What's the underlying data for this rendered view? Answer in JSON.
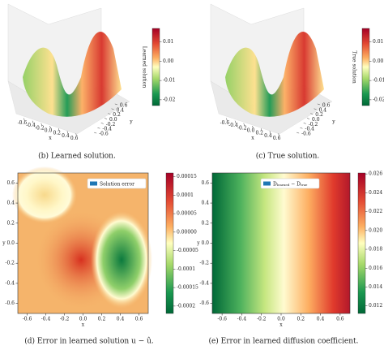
{
  "panels": [
    {
      "caption": "(b) Learned solution.",
      "xlabel": "x",
      "ylabel": "y",
      "xticks": [
        -0.6,
        -0.4,
        -0.2,
        {
          "value": 0,
          "label": "0.0"
        },
        0.2,
        0.4,
        0.6
      ],
      "yticks": [
        -0.6,
        -0.4,
        -0.2,
        {
          "value": 0,
          "label": "0.0"
        },
        0.2,
        0.4,
        0.6
      ],
      "xlim": [
        -0.7,
        0.7
      ],
      "ylim": [
        -0.7,
        0.7
      ],
      "colorbar": {
        "label": "Learned solution",
        "lim": [
          -0.023,
          0.017
        ],
        "ticks": [
          0.01,
          {
            "value": 0,
            "label": "0.00"
          },
          -0.01,
          -0.02
        ]
      }
    },
    {
      "caption": "(c) True solution.",
      "xlabel": "x",
      "ylabel": "y",
      "xticks": [
        -0.6,
        -0.4,
        -0.2,
        {
          "value": 0,
          "label": "0.0"
        },
        0.2,
        0.4,
        0.6
      ],
      "yticks": [
        -0.6,
        -0.4,
        -0.2,
        {
          "value": 0,
          "label": "0.0"
        },
        0.2,
        0.4,
        0.6
      ],
      "xlim": [
        -0.7,
        0.7
      ],
      "ylim": [
        -0.7,
        0.7
      ],
      "colorbar": {
        "label": "True solution",
        "lim": [
          -0.023,
          0.017
        ],
        "ticks": [
          0.01,
          {
            "value": 0,
            "label": "0.00"
          },
          -0.01,
          -0.02
        ]
      }
    },
    {
      "caption": "(d) Error in learned solution u − û.",
      "xlabel": "x",
      "ylabel": "y",
      "xticks": [
        -0.6,
        -0.4,
        -0.2,
        {
          "value": 0,
          "label": "0.0"
        },
        0.2,
        0.4,
        0.6
      ],
      "yticks": [
        0.6,
        0.4,
        0.2,
        {
          "value": 0,
          "label": "0.0"
        },
        -0.2,
        -0.4,
        -0.6
      ],
      "xlim": [
        -0.7,
        0.7
      ],
      "ylim": [
        -0.7,
        0.7
      ],
      "legend": [
        "Solution error"
      ],
      "colorbar": {
        "lim": [
          -0.00022,
          0.00016
        ],
        "ticks": [
          0.00015,
          0.0001,
          5e-05,
          {
            "value": 0,
            "label": "0.00000"
          },
          -5e-05,
          -0.0001,
          -0.00015,
          -0.0002
        ]
      }
    },
    {
      "caption": "(e) Error in learned diffusion coefficient.",
      "xlabel": "x",
      "ylabel": "y",
      "xticks": [
        -0.6,
        -0.4,
        -0.2,
        {
          "value": 0,
          "label": "0.0"
        },
        0.2,
        0.4,
        0.6
      ],
      "yticks": [
        0.6,
        0.4,
        0.2,
        {
          "value": 0,
          "label": "0.0"
        },
        -0.2,
        -0.4,
        -0.6
      ],
      "xlim": [
        -0.7,
        0.7
      ],
      "ylim": [
        -0.7,
        0.7
      ],
      "legend": [
        "D",
        "learned",
        " − D",
        "true"
      ],
      "colorbar": {
        "lim": [
          0.0112,
          0.0261
        ],
        "ticks": [
          0.026,
          0.024,
          0.022,
          {
            "value": 0.02,
            "label": "0.020"
          },
          0.018,
          0.016,
          0.014,
          0.012
        ]
      }
    }
  ]
}
